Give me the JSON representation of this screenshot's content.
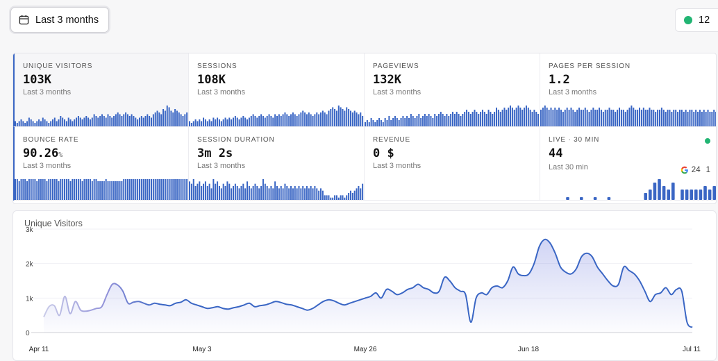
{
  "date_range": {
    "label": "Last 3 months",
    "icon": "calendar-icon"
  },
  "live_chip": {
    "count": "12",
    "color": "#22b573"
  },
  "accent": "#3a66c4",
  "kpis": [
    {
      "label": "UNIQUE VISITORS",
      "value": "103K",
      "unit": "",
      "sub": "Last 3 months",
      "spark": [
        3,
        2,
        3,
        4,
        3,
        2,
        3,
        5,
        4,
        3,
        2,
        3,
        4,
        3,
        5,
        4,
        3,
        2,
        3,
        4,
        5,
        3,
        4,
        6,
        5,
        4,
        3,
        5,
        4,
        3,
        4,
        5,
        6,
        5,
        4,
        5,
        6,
        5,
        4,
        5,
        7,
        6,
        5,
        6,
        7,
        6,
        5,
        7,
        6,
        5,
        6,
        7,
        8,
        7,
        6,
        7,
        8,
        7,
        6,
        7,
        6,
        5,
        4,
        5,
        6,
        5,
        6,
        7,
        6,
        5,
        7,
        8,
        9,
        8,
        7,
        10,
        9,
        12,
        11,
        9,
        8,
        10,
        9,
        8,
        7,
        6,
        7,
        8
      ]
    },
    {
      "label": "SESSIONS",
      "value": "108K",
      "unit": "",
      "sub": "Last 3 months",
      "spark": [
        3,
        2,
        3,
        4,
        3,
        4,
        3,
        5,
        4,
        3,
        4,
        3,
        5,
        4,
        5,
        4,
        3,
        4,
        5,
        4,
        5,
        4,
        5,
        6,
        5,
        4,
        5,
        6,
        5,
        4,
        5,
        6,
        7,
        6,
        5,
        6,
        7,
        6,
        5,
        6,
        7,
        6,
        5,
        7,
        6,
        7,
        6,
        7,
        8,
        7,
        6,
        7,
        8,
        7,
        6,
        7,
        8,
        9,
        8,
        7,
        8,
        7,
        6,
        7,
        8,
        7,
        8,
        9,
        8,
        7,
        9,
        10,
        11,
        10,
        9,
        12,
        11,
        10,
        9,
        11,
        10,
        9,
        8,
        9,
        8,
        7,
        8,
        6
      ]
    },
    {
      "label": "PAGEVIEWS",
      "value": "132K",
      "unit": "",
      "sub": "Last 3 months",
      "spark": [
        2,
        3,
        2,
        4,
        3,
        2,
        3,
        4,
        3,
        2,
        4,
        3,
        5,
        3,
        4,
        5,
        4,
        3,
        4,
        5,
        4,
        5,
        4,
        6,
        5,
        4,
        5,
        6,
        4,
        5,
        6,
        5,
        6,
        5,
        4,
        6,
        5,
        6,
        7,
        6,
        5,
        6,
        5,
        6,
        7,
        6,
        7,
        6,
        5,
        6,
        7,
        8,
        7,
        6,
        7,
        8,
        7,
        6,
        7,
        8,
        7,
        6,
        8,
        7,
        6,
        7,
        9,
        8,
        7,
        8,
        9,
        8,
        9,
        10,
        9,
        8,
        9,
        10,
        9,
        8,
        9,
        10,
        9,
        8,
        7,
        8,
        7,
        6
      ]
    },
    {
      "label": "PAGES PER SESSION",
      "value": "1.2",
      "unit": "",
      "sub": "Last 3 months",
      "spark": [
        8,
        9,
        10,
        9,
        8,
        9,
        8,
        9,
        8,
        9,
        8,
        7,
        8,
        9,
        8,
        9,
        8,
        7,
        8,
        9,
        8,
        8,
        9,
        8,
        7,
        8,
        9,
        8,
        8,
        9,
        8,
        7,
        8,
        8,
        9,
        8,
        8,
        7,
        8,
        9,
        8,
        8,
        7,
        8,
        9,
        10,
        9,
        8,
        8,
        9,
        8,
        9,
        8,
        8,
        9,
        8,
        8,
        7,
        8,
        8,
        9,
        8,
        7,
        8,
        8,
        7,
        8,
        8,
        7,
        8,
        8,
        7,
        8,
        7,
        8,
        8,
        7,
        8,
        7,
        8,
        7,
        8,
        7,
        8,
        7,
        7,
        8,
        7
      ]
    },
    {
      "label": "BOUNCE RATE",
      "value": "90.26",
      "unit": "%",
      "sub": "Last 3 months",
      "spark": [
        10,
        10,
        9,
        10,
        10,
        10,
        9,
        10,
        10,
        10,
        10,
        9,
        10,
        10,
        10,
        10,
        9,
        10,
        10,
        10,
        10,
        10,
        9,
        10,
        10,
        10,
        10,
        10,
        9,
        10,
        10,
        10,
        10,
        10,
        9,
        10,
        10,
        10,
        10,
        9,
        10,
        10,
        9,
        9,
        9,
        9,
        10,
        9,
        9,
        9,
        9,
        9,
        9,
        9,
        9,
        10,
        10,
        10,
        10,
        10,
        10,
        10,
        10,
        10,
        10,
        10,
        10,
        10,
        10,
        10,
        10,
        10,
        10,
        10,
        10,
        10,
        10,
        10,
        10,
        10,
        10,
        10,
        10,
        10,
        10,
        10,
        10,
        10
      ]
    },
    {
      "label": "SESSION DURATION",
      "value": "3m 2s",
      "unit": "",
      "sub": "Last 3 months",
      "spark": [
        8,
        7,
        9,
        6,
        7,
        8,
        6,
        7,
        8,
        6,
        7,
        5,
        9,
        7,
        8,
        6,
        5,
        7,
        6,
        8,
        7,
        5,
        6,
        7,
        6,
        5,
        6,
        7,
        5,
        8,
        6,
        5,
        6,
        7,
        6,
        5,
        6,
        9,
        7,
        6,
        5,
        6,
        5,
        8,
        6,
        5,
        6,
        5,
        7,
        6,
        5,
        6,
        5,
        6,
        5,
        6,
        5,
        6,
        5,
        6,
        5,
        6,
        5,
        6,
        5,
        4,
        5,
        4,
        2,
        2,
        2,
        1,
        1,
        2,
        2,
        1,
        2,
        2,
        1,
        2,
        3,
        4,
        3,
        4,
        5,
        6,
        5,
        7
      ]
    },
    {
      "label": "REVENUE",
      "value": "0 $",
      "unit": "",
      "sub": "Last 3 months",
      "spark": []
    },
    {
      "label": "LIVE · 30 MIN",
      "value": "44",
      "unit": "",
      "sub": "Last 30 min",
      "spark": [
        0,
        0,
        0.15,
        0,
        0,
        0.15,
        0,
        0,
        0.15,
        0,
        0,
        0.15,
        0,
        0,
        0,
        0,
        0,
        0,
        0,
        2,
        3,
        5,
        6,
        4,
        3,
        5,
        0,
        3,
        3,
        3,
        3,
        3,
        4,
        3,
        4
      ]
    }
  ],
  "live_referrer": {
    "icon": "google-icon",
    "count_a": "24",
    "count_b": "1"
  },
  "chart_data": {
    "type": "area",
    "title": "Unique Visitors",
    "x_ticks": [
      "Apr 11",
      "May 3",
      "May 26",
      "Jun 18",
      "Jul 11"
    ],
    "y_ticks": [
      "0",
      "1k",
      "2k",
      "3k"
    ],
    "ylim": [
      0,
      3000
    ],
    "grid": true,
    "series": [
      {
        "color": "#3a66c4",
        "values": [
          450,
          750,
          780,
          500,
          1050,
          550,
          900,
          650,
          620,
          650,
          700,
          750,
          1100,
          1400,
          1380,
          1200,
          850,
          880,
          900,
          850,
          800,
          850,
          820,
          800,
          780,
          850,
          880,
          950,
          850,
          800,
          750,
          700,
          720,
          750,
          700,
          680,
          720,
          750,
          800,
          850,
          750,
          780,
          800,
          850,
          900,
          870,
          820,
          800,
          750,
          700,
          650,
          700,
          800,
          900,
          950,
          920,
          850,
          800,
          850,
          900,
          950,
          1000,
          1050,
          1150,
          1000,
          1250,
          1200,
          1100,
          1150,
          1250,
          1300,
          1400,
          1300,
          1250,
          1150,
          1200,
          1600,
          1500,
          1300,
          1200,
          1100,
          300,
          1000,
          1150,
          1100,
          1300,
          1350,
          1300,
          1500,
          1900,
          1700,
          1650,
          1700,
          2000,
          2500,
          2700,
          2600,
          2300,
          1900,
          1750,
          1700,
          1850,
          2200,
          2300,
          2200,
          1900,
          1700,
          1500,
          1350,
          1400,
          1900,
          1800,
          1700,
          1500,
          1200,
          900,
          1100,
          1150,
          1300,
          1100,
          1250,
          1200,
          300,
          150
        ]
      }
    ]
  }
}
